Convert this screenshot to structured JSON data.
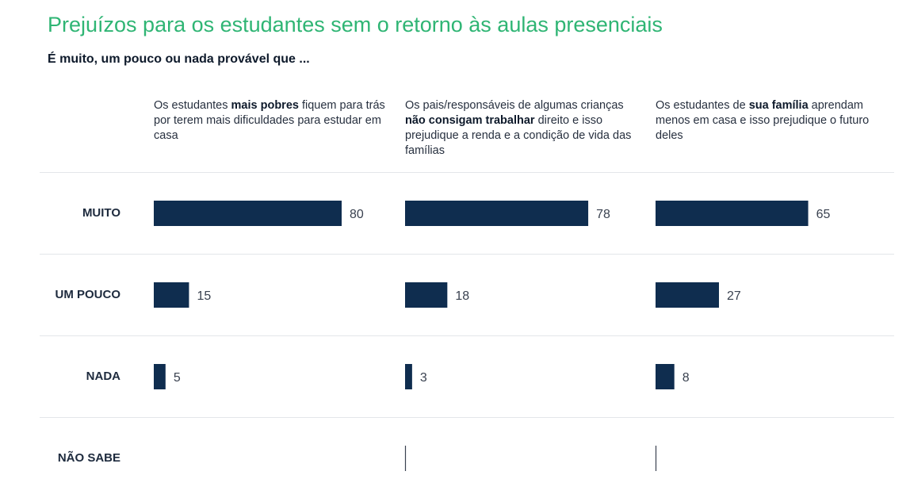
{
  "title": "Prejuízos para os estudantes sem o retorno às aulas presenciais",
  "subtitle": "É muito, um pouco ou nada provável que ...",
  "columns": [
    {
      "parts": [
        {
          "text": "Os estudantes ",
          "bold": false
        },
        {
          "text": "mais pobres",
          "bold": true
        },
        {
          "text": " fiquem para trás por terem mais dificuldades para estudar em casa",
          "bold": false
        }
      ]
    },
    {
      "parts": [
        {
          "text": "Os pais/responsáveis de algumas crianças ",
          "bold": false
        },
        {
          "text": "não consigam trabalhar",
          "bold": true
        },
        {
          "text": " direito e isso prejudique a renda e a condição de vida das famílias",
          "bold": false
        }
      ]
    },
    {
      "parts": [
        {
          "text": "Os estudantes de ",
          "bold": false
        },
        {
          "text": "sua família",
          "bold": true
        },
        {
          "text": "  aprendam menos em casa e isso prejudique o futuro deles",
          "bold": false
        }
      ]
    }
  ],
  "colors": {
    "bar": "#0f2d4f",
    "title": "#2fb574",
    "grid": "#e3e6ea"
  },
  "chart_data": {
    "type": "bar",
    "categories": [
      "MUITO",
      "UM POUCO",
      "NADA",
      "NÃO SABE"
    ],
    "series": [
      {
        "values": [
          80,
          15,
          5,
          0
        ]
      },
      {
        "values": [
          78,
          18,
          3,
          0
        ]
      },
      {
        "values": [
          65,
          27,
          8,
          0
        ]
      }
    ],
    "xlim": [
      0,
      100
    ],
    "grid": false,
    "legend": "none"
  }
}
